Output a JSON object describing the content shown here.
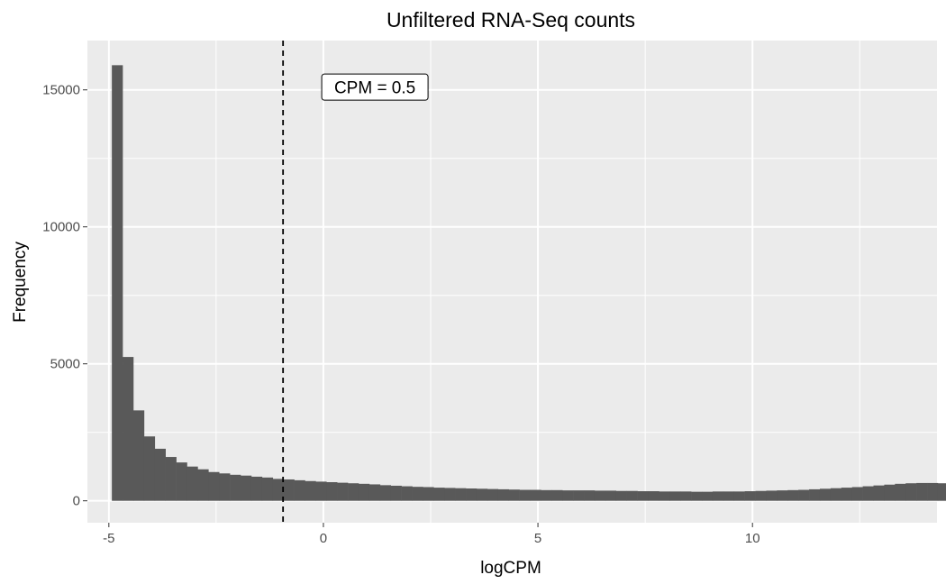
{
  "chart_data": {
    "type": "bar",
    "title": "Unfiltered RNA-Seq counts",
    "xlabel": "logCPM",
    "ylabel": "Frequency",
    "xlim": [
      -5.5,
      14.3
    ],
    "ylim": [
      -800,
      16800
    ],
    "x_ticks": [
      -5,
      0,
      5,
      10
    ],
    "x_tick_labels": [
      "-5",
      "0",
      "5",
      "10"
    ],
    "y_ticks": [
      0,
      5000,
      10000,
      15000
    ],
    "y_tick_labels": [
      "0",
      "5000",
      "10000",
      "15000"
    ],
    "grid": true,
    "bin_width": 0.25,
    "bin_start": -4.93,
    "bar_color": "#595959",
    "panel_color": "#ebebeb",
    "grid_color": "#ffffff",
    "values": [
      15900,
      5250,
      3300,
      2350,
      1900,
      1600,
      1400,
      1250,
      1150,
      1050,
      1000,
      950,
      920,
      880,
      850,
      800,
      780,
      750,
      720,
      700,
      680,
      660,
      640,
      620,
      600,
      570,
      550,
      530,
      510,
      500,
      480,
      470,
      460,
      450,
      440,
      430,
      420,
      410,
      400,
      400,
      390,
      390,
      380,
      380,
      380,
      370,
      370,
      360,
      360,
      350,
      350,
      340,
      340,
      340,
      330,
      330,
      340,
      340,
      340,
      350,
      360,
      370,
      380,
      390,
      400,
      420,
      440,
      460,
      480,
      500,
      530,
      560,
      590,
      620,
      640,
      650,
      650,
      640,
      620,
      590,
      550,
      500,
      450,
      400,
      350,
      300,
      250,
      200,
      160,
      130,
      110,
      95,
      80,
      65,
      50,
      40,
      30,
      22,
      18,
      14,
      10,
      8,
      6,
      5,
      4,
      3,
      2,
      2,
      1,
      1,
      1,
      1,
      1,
      0,
      0,
      0,
      0,
      0
    ],
    "vline": {
      "x": -0.94,
      "style": "dashed",
      "color": "#000000"
    },
    "annotation": {
      "text": "CPM = 0.5",
      "x": 1.2,
      "y": 15100
    }
  }
}
